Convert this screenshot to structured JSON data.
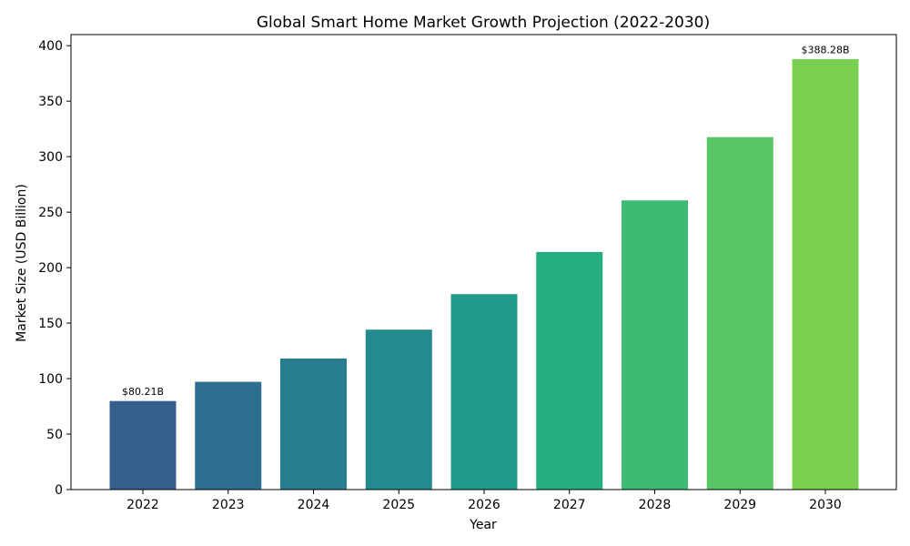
{
  "chart_data": {
    "type": "bar",
    "title": "Global Smart Home Market Growth Projection (2022-2030)",
    "xlabel": "Year",
    "ylabel": "Market Size (USD Billion)",
    "categories": [
      "2022",
      "2023",
      "2024",
      "2025",
      "2026",
      "2027",
      "2028",
      "2029",
      "2030"
    ],
    "values": [
      80.21,
      97.5,
      118.5,
      144.5,
      176.5,
      214.5,
      261.0,
      318.0,
      388.28
    ],
    "colors": [
      "#365f8d",
      "#2e6e8e",
      "#287d8e",
      "#238a8d",
      "#1f9a8a",
      "#26ad81",
      "#3dbb74",
      "#56c667",
      "#7ad151"
    ],
    "ylim": [
      0,
      410
    ],
    "yticks": [
      0,
      50,
      100,
      150,
      200,
      250,
      300,
      350,
      400
    ],
    "data_labels": [
      {
        "index": 0,
        "text": "$80.21B"
      },
      {
        "index": 8,
        "text": "$388.28B"
      }
    ],
    "grid": false,
    "legend": "none"
  }
}
